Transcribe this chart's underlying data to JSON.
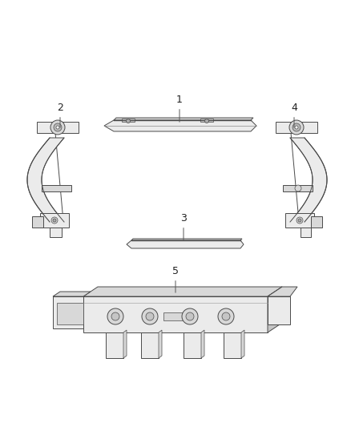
{
  "bg_color": "#ffffff",
  "line_color": "#4a4a4a",
  "fill_light": "#ebebeb",
  "fill_mid": "#d8d8d8",
  "fill_dark": "#c5c5c5",
  "label_color": "#222222",
  "fig_width": 4.38,
  "fig_height": 5.33,
  "dpi": 100
}
